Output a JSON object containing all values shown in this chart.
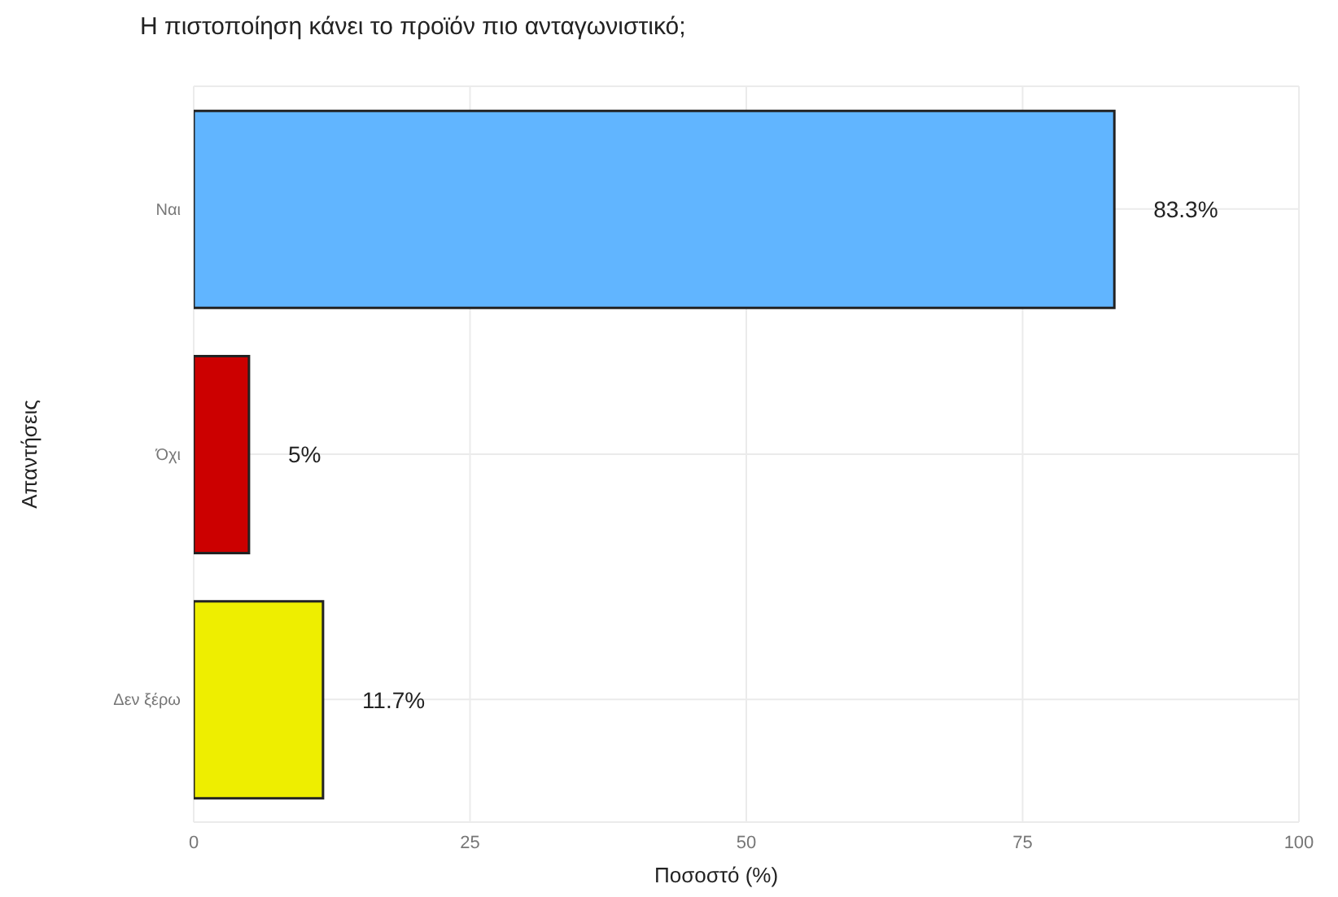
{
  "chart_data": {
    "type": "bar",
    "orientation": "horizontal",
    "title": "Η πιστοποίηση κάνει το προϊόν πιο ανταγωνιστικό;",
    "xlabel": "Ποσοστό (%)",
    "ylabel": "Απαντήσεις",
    "categories": [
      "Ναι",
      "Όχι",
      "Δεν ξέρω"
    ],
    "values": [
      83.3,
      5,
      11.7
    ],
    "colors": [
      "#61b5ff",
      "#cc0000",
      "#eeee00"
    ],
    "value_labels": [
      "83.3%",
      "5%",
      "11.7%"
    ],
    "xlim": [
      0,
      100
    ],
    "xticks": [
      0,
      25,
      50,
      75,
      100
    ],
    "grid": true
  }
}
